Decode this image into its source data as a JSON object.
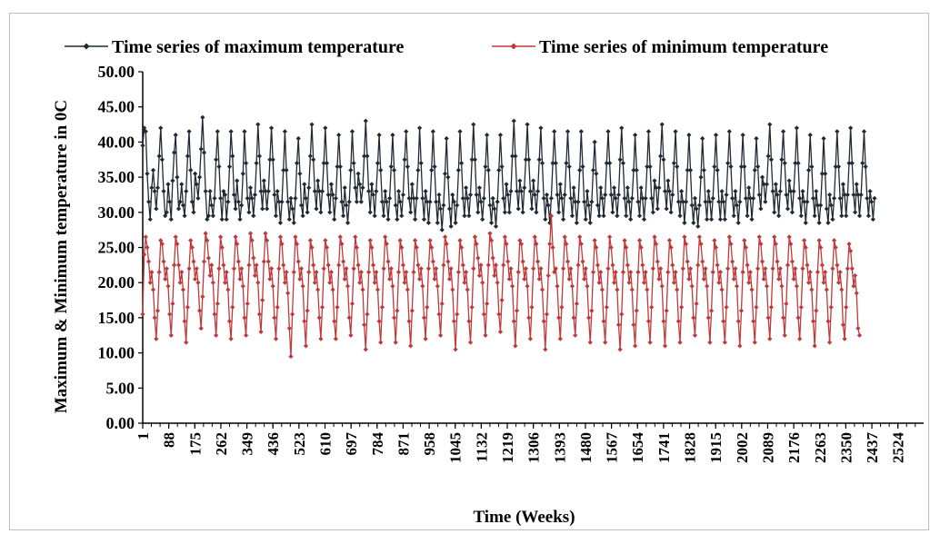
{
  "chart_data": {
    "type": "line",
    "title": "",
    "xlabel": "Time (Weeks)",
    "ylabel": "Maximum & Minimum temperature in 0C",
    "ylim": [
      0,
      50
    ],
    "yticks": [
      "0.00",
      "5.00",
      "10.00",
      "15.00",
      "20.00",
      "25.00",
      "30.00",
      "35.00",
      "40.00",
      "45.00",
      "50.00"
    ],
    "xlim": [
      1,
      2610
    ],
    "xticks": [
      "1",
      "88",
      "175",
      "262",
      "349",
      "436",
      "523",
      "610",
      "697",
      "784",
      "871",
      "958",
      "1045",
      "1132",
      "1219",
      "1306",
      "1393",
      "1480",
      "1567",
      "1654",
      "1741",
      "1828",
      "1915",
      "2002",
      "2089",
      "2176",
      "2263",
      "2350",
      "2437",
      "2524"
    ],
    "legend_position": "top",
    "grid": false,
    "series": [
      {
        "name": "Time series of maximum temperature",
        "color": "#1f2a35",
        "marker": "diamond",
        "x_start": 1,
        "x_step": 5,
        "values": [
          39.5,
          42.0,
          41.5,
          35.5,
          31.5,
          29.0,
          33.5,
          36.0,
          33.0,
          30.5,
          33.5,
          38.0,
          42.0,
          37.5,
          33.0,
          29.5,
          30.0,
          34.0,
          31.5,
          29.0,
          34.5,
          38.5,
          41.0,
          35.0,
          30.5,
          31.5,
          34.0,
          31.0,
          29.5,
          33.0,
          38.0,
          41.5,
          36.0,
          31.5,
          30.0,
          35.5,
          34.0,
          32.0,
          35.0,
          39.0,
          43.5,
          38.5,
          33.0,
          29.0,
          29.5,
          33.0,
          31.0,
          29.5,
          32.0,
          37.5,
          41.5,
          36.5,
          32.0,
          29.0,
          33.0,
          32.5,
          29.0,
          31.5,
          36.5,
          41.5,
          38.0,
          32.5,
          30.5,
          34.5,
          31.5,
          29.0,
          31.0,
          35.5,
          41.5,
          37.0,
          32.0,
          30.0,
          33.5,
          32.0,
          29.5,
          32.5,
          37.0,
          42.5,
          38.0,
          33.0,
          30.5,
          34.5,
          33.0,
          30.5,
          33.0,
          37.5,
          42.0,
          37.5,
          32.5,
          29.5,
          33.0,
          31.5,
          28.5,
          31.5,
          36.0,
          41.5,
          36.0,
          31.5,
          29.0,
          32.0,
          30.5,
          28.5,
          32.0,
          37.0,
          40.5,
          35.5,
          31.0,
          29.5,
          34.0,
          32.0,
          30.0,
          33.5,
          38.0,
          42.5,
          37.5,
          33.0,
          30.5,
          34.5,
          33.0,
          30.0,
          33.0,
          37.0,
          42.0,
          37.0,
          32.5,
          30.0,
          34.0,
          32.5,
          29.0,
          32.0,
          36.5,
          41.0,
          36.5,
          31.5,
          29.5,
          33.5,
          31.0,
          28.5,
          31.5,
          36.0,
          41.5,
          37.0,
          33.5,
          31.5,
          35.5,
          34.0,
          31.5,
          33.5,
          38.0,
          43.0,
          38.0,
          33.0,
          30.0,
          34.0,
          32.5,
          29.5,
          33.0,
          37.0,
          41.0,
          36.0,
          31.5,
          29.5,
          33.0,
          31.5,
          29.0,
          32.0,
          36.5,
          41.0,
          36.0,
          31.0,
          29.0,
          33.0,
          31.5,
          29.5,
          32.5,
          37.5,
          41.5,
          36.5,
          32.0,
          30.0,
          34.0,
          32.0,
          29.0,
          32.0,
          36.0,
          42.0,
          37.0,
          32.0,
          29.0,
          33.0,
          31.5,
          28.5,
          31.5,
          36.0,
          41.5,
          36.5,
          31.5,
          28.5,
          32.5,
          30.5,
          27.5,
          31.0,
          35.5,
          40.5,
          35.0,
          30.5,
          28.0,
          32.5,
          31.5,
          28.5,
          31.0,
          36.0,
          41.5,
          37.0,
          32.0,
          29.5,
          33.5,
          32.0,
          29.5,
          32.5,
          37.5,
          42.5,
          37.5,
          32.5,
          30.0,
          33.5,
          31.5,
          29.0,
          32.0,
          36.5,
          41.0,
          36.0,
          31.0,
          28.5,
          32.0,
          30.5,
          28.0,
          31.5,
          36.0,
          41.0,
          36.5,
          32.0,
          30.0,
          34.0,
          32.5,
          30.0,
          33.0,
          38.0,
          43.0,
          38.0,
          33.0,
          30.5,
          34.5,
          33.0,
          30.0,
          33.5,
          37.5,
          42.5,
          37.5,
          33.0,
          30.5,
          34.5,
          32.5,
          30.0,
          33.0,
          37.5,
          42.0,
          37.0,
          32.0,
          29.0,
          32.5,
          31.0,
          28.5,
          32.0,
          37.0,
          41.5,
          37.0,
          32.5,
          30.0,
          34.0,
          32.0,
          29.0,
          32.5,
          37.0,
          41.5,
          36.5,
          32.0,
          29.5,
          33.5,
          31.5,
          28.5,
          31.5,
          36.0,
          41.5,
          36.5,
          31.5,
          29.0,
          33.0,
          31.0,
          28.5,
          31.5,
          36.0,
          40.0,
          35.5,
          31.0,
          29.5,
          33.5,
          32.0,
          29.5,
          32.5,
          37.0,
          41.5,
          37.0,
          32.5,
          30.0,
          33.5,
          32.0,
          29.5,
          32.5,
          37.5,
          42.0,
          37.0,
          32.0,
          29.5,
          33.5,
          31.5,
          29.0,
          32.0,
          36.0,
          41.0,
          36.0,
          31.5,
          29.5,
          33.5,
          32.0,
          29.0,
          32.0,
          36.5,
          41.5,
          36.5,
          32.0,
          30.0,
          34.5,
          33.5,
          30.5,
          33.5,
          38.0,
          42.5,
          37.5,
          33.0,
          30.5,
          34.5,
          33.0,
          30.0,
          32.5,
          37.0,
          41.5,
          36.5,
          31.5,
          29.5,
          33.0,
          31.5,
          28.5,
          31.5,
          36.0,
          41.0,
          36.0,
          31.0,
          28.5,
          32.0,
          30.5,
          28.0,
          31.0,
          35.0,
          40.5,
          36.0,
          31.5,
          29.0,
          33.0,
          31.5,
          29.0,
          32.0,
          36.5,
          41.0,
          36.0,
          31.5,
          29.0,
          33.0,
          31.5,
          29.0,
          32.5,
          37.0,
          41.5,
          36.5,
          32.0,
          29.5,
          33.0,
          31.0,
          28.5,
          31.5,
          36.5,
          41.0,
          36.5,
          32.0,
          29.5,
          33.5,
          32.0,
          29.0,
          32.0,
          36.0,
          40.5,
          36.5,
          32.5,
          30.5,
          35.0,
          34.0,
          31.5,
          34.0,
          38.0,
          42.5,
          37.5,
          33.0,
          30.0,
          34.0,
          32.5,
          29.5,
          33.0,
          37.5,
          41.5,
          37.0,
          32.5,
          30.5,
          34.5,
          33.0,
          30.0,
          33.0,
          37.0,
          42.0,
          37.0,
          32.0,
          29.5,
          33.0,
          31.5,
          28.5,
          31.5,
          36.0,
          41.0,
          36.5,
          32.0,
          29.5,
          33.0,
          31.0,
          28.5,
          31.0,
          35.5,
          40.5,
          35.5,
          30.5,
          28.5,
          32.5,
          31.0,
          29.0,
          32.0,
          36.5,
          41.5,
          36.5,
          32.0,
          29.5,
          34.0,
          32.5,
          29.5,
          32.5,
          37.0,
          42.0,
          37.0,
          32.5,
          30.0,
          34.0,
          32.5,
          29.5,
          32.5,
          37.0,
          41.5,
          36.5,
          32.0,
          29.5,
          33.0,
          31.5,
          29.0,
          32.0
        ]
      },
      {
        "name": "Time series of minimum temperature",
        "color": "#c0393b",
        "marker": "diamond",
        "x_start": 1,
        "x_step": 5,
        "values": [
          15.5,
          24.0,
          26.5,
          25.0,
          23.0,
          20.0,
          21.5,
          19.0,
          15.0,
          12.0,
          16.0,
          21.5,
          26.0,
          25.5,
          23.0,
          20.5,
          22.0,
          19.5,
          15.5,
          12.5,
          17.0,
          22.5,
          26.5,
          25.5,
          22.5,
          20.0,
          21.5,
          19.0,
          14.5,
          11.5,
          16.5,
          22.0,
          26.0,
          25.0,
          23.0,
          20.5,
          22.0,
          20.0,
          16.0,
          13.5,
          18.0,
          23.0,
          27.0,
          26.0,
          23.5,
          21.0,
          22.5,
          20.0,
          15.5,
          12.5,
          17.0,
          22.0,
          26.5,
          25.0,
          22.5,
          20.0,
          21.5,
          19.0,
          14.5,
          12.0,
          16.5,
          22.0,
          26.5,
          25.5,
          23.0,
          20.5,
          22.0,
          19.5,
          15.0,
          12.5,
          17.0,
          22.5,
          27.0,
          26.0,
          23.5,
          21.0,
          22.5,
          20.0,
          15.5,
          13.0,
          17.5,
          23.0,
          27.0,
          26.0,
          23.0,
          20.5,
          22.0,
          19.5,
          15.0,
          12.0,
          16.5,
          22.0,
          26.5,
          25.5,
          22.5,
          20.0,
          21.5,
          18.5,
          13.5,
          9.5,
          15.5,
          21.5,
          26.5,
          25.5,
          23.0,
          20.5,
          22.0,
          19.5,
          14.5,
          11.0,
          16.0,
          21.5,
          26.0,
          25.0,
          22.5,
          20.0,
          21.5,
          19.0,
          15.0,
          12.0,
          16.5,
          22.0,
          26.0,
          25.0,
          22.5,
          20.0,
          21.5,
          19.0,
          14.5,
          12.0,
          16.5,
          22.5,
          26.5,
          25.5,
          23.0,
          20.5,
          22.0,
          19.5,
          15.0,
          12.5,
          17.0,
          22.0,
          26.5,
          25.0,
          22.5,
          20.0,
          21.5,
          19.0,
          14.0,
          10.5,
          15.5,
          21.5,
          26.0,
          25.0,
          22.5,
          20.0,
          21.5,
          19.0,
          14.5,
          11.5,
          16.5,
          22.0,
          26.5,
          25.5,
          23.0,
          20.5,
          22.0,
          19.5,
          15.0,
          11.5,
          16.0,
          21.5,
          26.0,
          25.0,
          22.5,
          20.0,
          21.5,
          19.0,
          14.5,
          11.0,
          16.0,
          21.5,
          26.0,
          25.0,
          22.5,
          20.5,
          22.0,
          19.5,
          15.0,
          12.0,
          16.5,
          22.0,
          26.0,
          25.0,
          23.0,
          20.5,
          22.0,
          19.5,
          15.5,
          12.5,
          17.0,
          22.5,
          26.5,
          25.5,
          23.0,
          20.5,
          22.0,
          19.0,
          14.5,
          10.5,
          15.5,
          21.5,
          26.0,
          25.0,
          22.5,
          20.0,
          21.5,
          19.0,
          14.5,
          11.5,
          16.5,
          22.0,
          26.5,
          25.5,
          23.5,
          21.0,
          22.5,
          20.0,
          15.5,
          12.5,
          17.0,
          22.5,
          27.0,
          26.0,
          23.5,
          21.0,
          22.5,
          20.0,
          15.5,
          13.0,
          17.5,
          22.5,
          26.5,
          25.5,
          23.0,
          20.5,
          22.0,
          19.5,
          14.5,
          11.0,
          16.0,
          21.5,
          26.0,
          25.5,
          23.0,
          20.5,
          22.0,
          19.5,
          15.0,
          12.0,
          16.5,
          22.0,
          26.5,
          25.5,
          23.0,
          20.5,
          22.0,
          19.0,
          14.5,
          10.5,
          15.5,
          21.0,
          25.5,
          29.5,
          25.0,
          21.5,
          22.0,
          19.5,
          15.0,
          12.0,
          16.5,
          22.0,
          26.5,
          25.5,
          23.0,
          20.5,
          22.0,
          19.5,
          15.0,
          12.5,
          17.0,
          22.5,
          26.5,
          25.5,
          23.0,
          20.5,
          22.0,
          19.5,
          15.0,
          11.5,
          16.0,
          21.5,
          26.0,
          25.0,
          22.5,
          20.0,
          21.5,
          19.0,
          14.5,
          11.5,
          16.5,
          22.0,
          26.5,
          25.0,
          22.5,
          20.0,
          21.5,
          19.0,
          14.0,
          10.5,
          15.5,
          21.5,
          26.0,
          25.0,
          22.5,
          20.0,
          21.5,
          19.0,
          14.0,
          11.0,
          16.0,
          21.5,
          26.0,
          25.0,
          22.5,
          20.0,
          21.5,
          19.0,
          14.5,
          11.5,
          16.5,
          22.0,
          26.5,
          25.5,
          23.0,
          20.5,
          22.0,
          19.5,
          14.5,
          11.0,
          16.0,
          21.5,
          26.0,
          25.0,
          22.5,
          20.0,
          21.5,
          19.0,
          14.5,
          11.5,
          16.5,
          22.0,
          26.5,
          25.5,
          23.0,
          20.5,
          22.0,
          19.5,
          15.0,
          12.5,
          17.0,
          22.5,
          26.5,
          25.5,
          23.0,
          20.5,
          22.0,
          19.5,
          15.0,
          11.5,
          16.0,
          21.5,
          26.0,
          25.0,
          22.5,
          20.0,
          21.5,
          19.0,
          14.5,
          11.5,
          16.5,
          22.0,
          26.5,
          25.5,
          23.0,
          20.5,
          22.0,
          19.5,
          14.5,
          11.0,
          16.0,
          21.5,
          26.0,
          25.0,
          22.5,
          20.0,
          21.5,
          19.0,
          14.5,
          11.5,
          16.5,
          22.0,
          26.5,
          25.5,
          23.0,
          20.5,
          22.0,
          19.5,
          15.0,
          12.0,
          16.5,
          22.0,
          26.5,
          25.5,
          23.0,
          20.5,
          22.0,
          19.5,
          15.0,
          12.5,
          17.0,
          22.5,
          26.5,
          25.5,
          23.0,
          20.5,
          22.0,
          19.5,
          15.0,
          12.0,
          16.5,
          22.0,
          26.0,
          25.0,
          22.5,
          20.0,
          21.5,
          19.0,
          14.5,
          11.0,
          16.0,
          21.5,
          26.0,
          25.0,
          22.5,
          20.0,
          21.5,
          19.0,
          14.5,
          11.5,
          16.5,
          22.0,
          26.0,
          25.0,
          22.5,
          20.0,
          21.5,
          19.0,
          14.0,
          12.0,
          16.5,
          22.0,
          25.5,
          24.5,
          22.0,
          19.5,
          21.0,
          18.5,
          13.5,
          12.5
        ]
      }
    ]
  }
}
